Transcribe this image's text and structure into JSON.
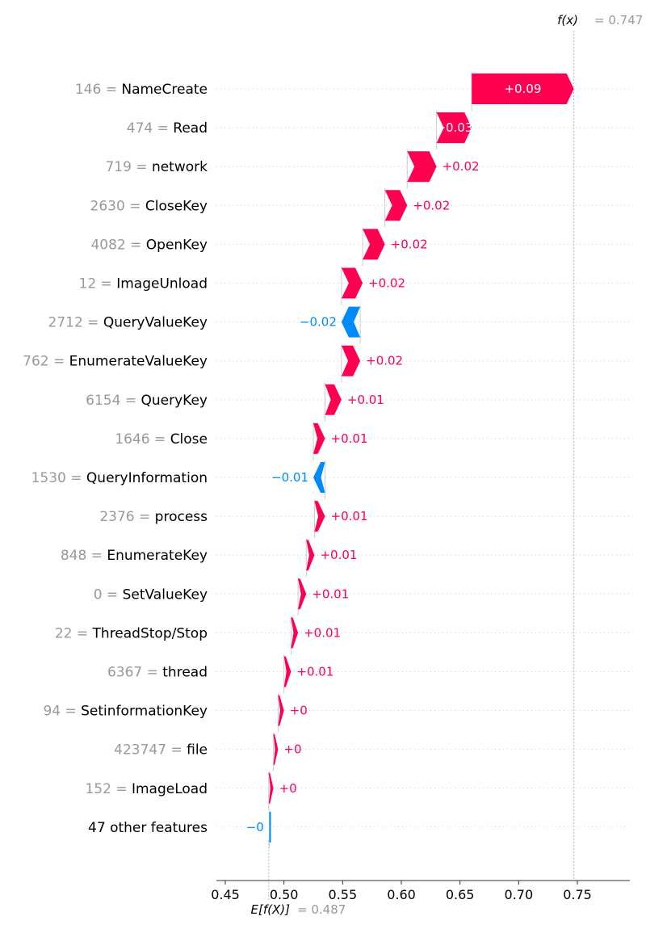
{
  "chart_data": {
    "type": "waterfall",
    "fx_label": "f(x)",
    "fx_value": "= 0.747",
    "base_label": "E[f(X)]",
    "base_value_text": "= 0.487",
    "base_value": 0.487,
    "final_value": 0.747,
    "xlim": [
      0.44,
      0.79
    ],
    "xticks": [
      "0.45",
      "0.50",
      "0.55",
      "0.60",
      "0.65",
      "0.70",
      "0.75"
    ],
    "tick_values": [
      0.45,
      0.5,
      0.55,
      0.6,
      0.65,
      0.7,
      0.75
    ],
    "colors": {
      "positive": "#ff0051",
      "negative": "#008bfb"
    },
    "features": [
      {
        "value": "146 =",
        "name": "NameCreate",
        "start": 0.66,
        "end": 0.747,
        "label": "+0.09",
        "label_inside": true
      },
      {
        "value": "474 =",
        "name": "Read",
        "start": 0.63,
        "end": 0.66,
        "label": "+0.03",
        "label_inside": true
      },
      {
        "value": "719 =",
        "name": "network",
        "start": 0.605,
        "end": 0.63,
        "label": "+0.02",
        "label_inside": false
      },
      {
        "value": "2630 =",
        "name": "CloseKey",
        "start": 0.586,
        "end": 0.605,
        "label": "+0.02",
        "label_inside": false
      },
      {
        "value": "4082 =",
        "name": "OpenKey",
        "start": 0.567,
        "end": 0.586,
        "label": "+0.02",
        "label_inside": false
      },
      {
        "value": "12 =",
        "name": "ImageUnload",
        "start": 0.549,
        "end": 0.567,
        "label": "+0.02",
        "label_inside": false
      },
      {
        "value": "2712 =",
        "name": "QueryValueKey",
        "start": 0.565,
        "end": 0.549,
        "label": "−0.02",
        "label_inside": false
      },
      {
        "value": "762 =",
        "name": "EnumerateValueKey",
        "start": 0.549,
        "end": 0.565,
        "label": "+0.02",
        "label_inside": false
      },
      {
        "value": "6154 =",
        "name": "QueryKey",
        "start": 0.535,
        "end": 0.549,
        "label": "+0.01",
        "label_inside": false
      },
      {
        "value": "1646 =",
        "name": "Close",
        "start": 0.525,
        "end": 0.535,
        "label": "+0.01",
        "label_inside": false
      },
      {
        "value": "1530 =",
        "name": "QueryInformation",
        "start": 0.535,
        "end": 0.525,
        "label": "−0.01",
        "label_inside": false
      },
      {
        "value": "2376 =",
        "name": "process",
        "start": 0.526,
        "end": 0.535,
        "label": "+0.01",
        "label_inside": false
      },
      {
        "value": "848 =",
        "name": "EnumerateKey",
        "start": 0.519,
        "end": 0.526,
        "label": "+0.01",
        "label_inside": false
      },
      {
        "value": "0 =",
        "name": "SetValueKey",
        "start": 0.512,
        "end": 0.519,
        "label": "+0.01",
        "label_inside": false
      },
      {
        "value": "22 =",
        "name": "ThreadStop/Stop",
        "start": 0.506,
        "end": 0.512,
        "label": "+0.01",
        "label_inside": false
      },
      {
        "value": "6367 =",
        "name": "thread",
        "start": 0.5,
        "end": 0.506,
        "label": "+0.01",
        "label_inside": false
      },
      {
        "value": "94 =",
        "name": "SetinformationKey",
        "start": 0.495,
        "end": 0.5,
        "label": "+0",
        "label_inside": false
      },
      {
        "value": "423747 =",
        "name": "file",
        "start": 0.491,
        "end": 0.495,
        "label": "+0",
        "label_inside": false
      },
      {
        "value": "152 =",
        "name": "ImageLoad",
        "start": 0.487,
        "end": 0.491,
        "label": "+0",
        "label_inside": false
      },
      {
        "value": "",
        "name": "47 other features",
        "start": 0.4875,
        "end": 0.487,
        "label": "−0",
        "label_inside": false
      }
    ]
  }
}
